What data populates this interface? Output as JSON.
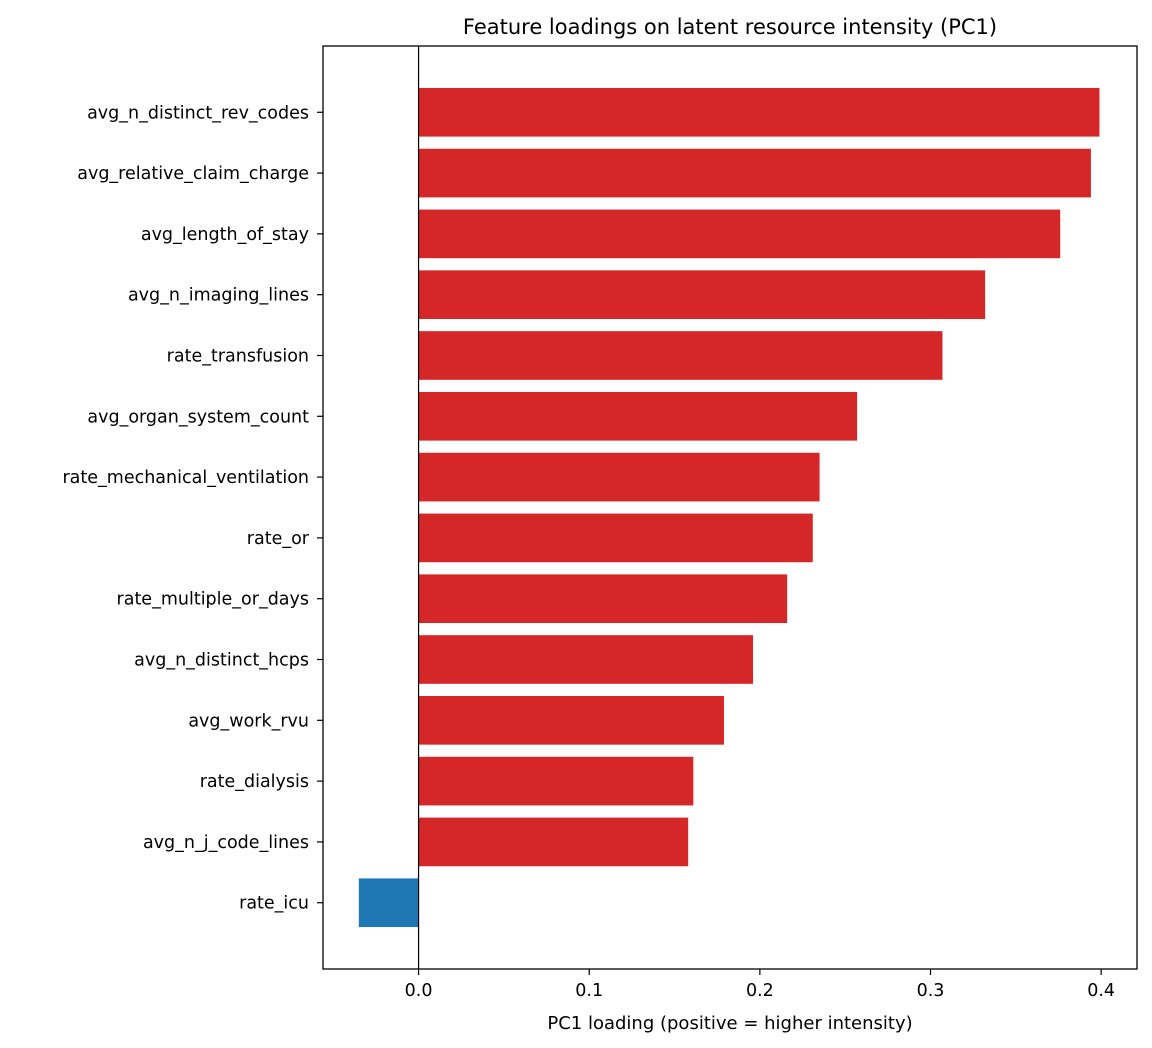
{
  "chart_data": {
    "type": "bar",
    "orientation": "horizontal",
    "title": "Feature loadings on latent resource intensity (PC1)",
    "xlabel": "PC1 loading (positive = higher intensity)",
    "ylabel": "",
    "xlim": [
      -0.056,
      0.421
    ],
    "xticks": [
      "0.0",
      "0.1",
      "0.2",
      "0.3",
      "0.4"
    ],
    "grid": false,
    "categories": [
      "avg_n_distinct_rev_codes",
      "avg_relative_claim_charge",
      "avg_length_of_stay",
      "avg_n_imaging_lines",
      "rate_transfusion",
      "avg_organ_system_count",
      "rate_mechanical_ventilation",
      "rate_or",
      "rate_multiple_or_days",
      "avg_n_distinct_hcps",
      "avg_work_rvu",
      "rate_dialysis",
      "avg_n_j_code_lines",
      "rate_icu"
    ],
    "values": [
      0.399,
      0.394,
      0.376,
      0.332,
      0.307,
      0.257,
      0.235,
      0.231,
      0.216,
      0.196,
      0.179,
      0.161,
      0.158,
      -0.035
    ],
    "colors": {
      "positive": "#d62728",
      "negative": "#1f77b4"
    }
  }
}
